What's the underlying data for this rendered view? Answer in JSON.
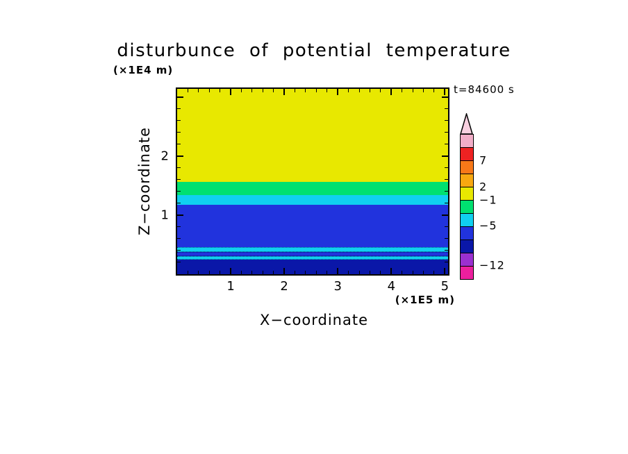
{
  "title": "disturbunce of potential temperature",
  "time_label": "t=84600 s",
  "axes": {
    "x_label": "X−coordinate",
    "x_unit": "(×1E5 m)",
    "y_label": "Z−coordinate",
    "y_unit": "(×1E4 m)"
  },
  "chart_data": {
    "type": "heatmap",
    "title": "disturbunce of potential temperature",
    "subtitle": "t=84600 s",
    "xlabel": "X−coordinate (×1E5 m)",
    "ylabel": "Z−coordinate (×1E4 m)",
    "x_range": [
      0,
      5.06
    ],
    "y_range": [
      0,
      3.14
    ],
    "x_ticks": [
      1,
      2,
      3,
      4,
      5
    ],
    "y_ticks": [
      1,
      2
    ],
    "x_minor_step": 0.2,
    "y_minor_step": 0.2,
    "grid": false,
    "legend_position": "right-colorbar",
    "bands_bottom_to_top": [
      {
        "name": "dark-blue-bottom",
        "z_from": 0.0,
        "z_to": 0.25,
        "color": "#0a17a8",
        "approx_value": "-12 to -8",
        "dotted": false
      },
      {
        "name": "cyan-stripe-low",
        "z_from": 0.25,
        "z_to": 0.31,
        "color": "#10d0f0",
        "approx_value": "-5 to -3",
        "dotted": true
      },
      {
        "name": "blue-stripe",
        "z_from": 0.31,
        "z_to": 0.38,
        "color": "#2133dd",
        "approx_value": "-8 to -5",
        "dotted": true
      },
      {
        "name": "cyan-stripe-high",
        "z_from": 0.38,
        "z_to": 0.46,
        "color": "#10d0f0",
        "approx_value": "-5 to -3",
        "dotted": true
      },
      {
        "name": "blue-main",
        "z_from": 0.46,
        "z_to": 1.18,
        "color": "#2133dd",
        "approx_value": "-8 to -5",
        "dotted": false
      },
      {
        "name": "cyan-band",
        "z_from": 1.18,
        "z_to": 1.34,
        "color": "#10d0f0",
        "approx_value": "-5 to -3",
        "dotted": false
      },
      {
        "name": "green-band",
        "z_from": 1.34,
        "z_to": 1.56,
        "color": "#00e070",
        "approx_value": "-3 to -1",
        "dotted": false
      },
      {
        "name": "yellow-top",
        "z_from": 1.56,
        "z_to": 3.14,
        "color": "#e8e800",
        "approx_value": "-1 to 2",
        "dotted": false
      }
    ],
    "colorbar": {
      "arrow_color": "#f8d0e0",
      "segments_top_to_bottom": [
        "#f2aec8",
        "#ee2222",
        "#f87818",
        "#f8a810",
        "#e8e800",
        "#00e070",
        "#10d0f0",
        "#2133dd",
        "#0a17a8",
        "#9b30d0",
        "#ec1f9e"
      ],
      "labels": [
        {
          "value": "7",
          "after_segment": 2
        },
        {
          "value": "2",
          "after_segment": 4
        },
        {
          "value": "−1",
          "after_segment": 5
        },
        {
          "value": "−5",
          "after_segment": 7
        },
        {
          "value": "−12",
          "after_segment": 10
        }
      ]
    }
  }
}
